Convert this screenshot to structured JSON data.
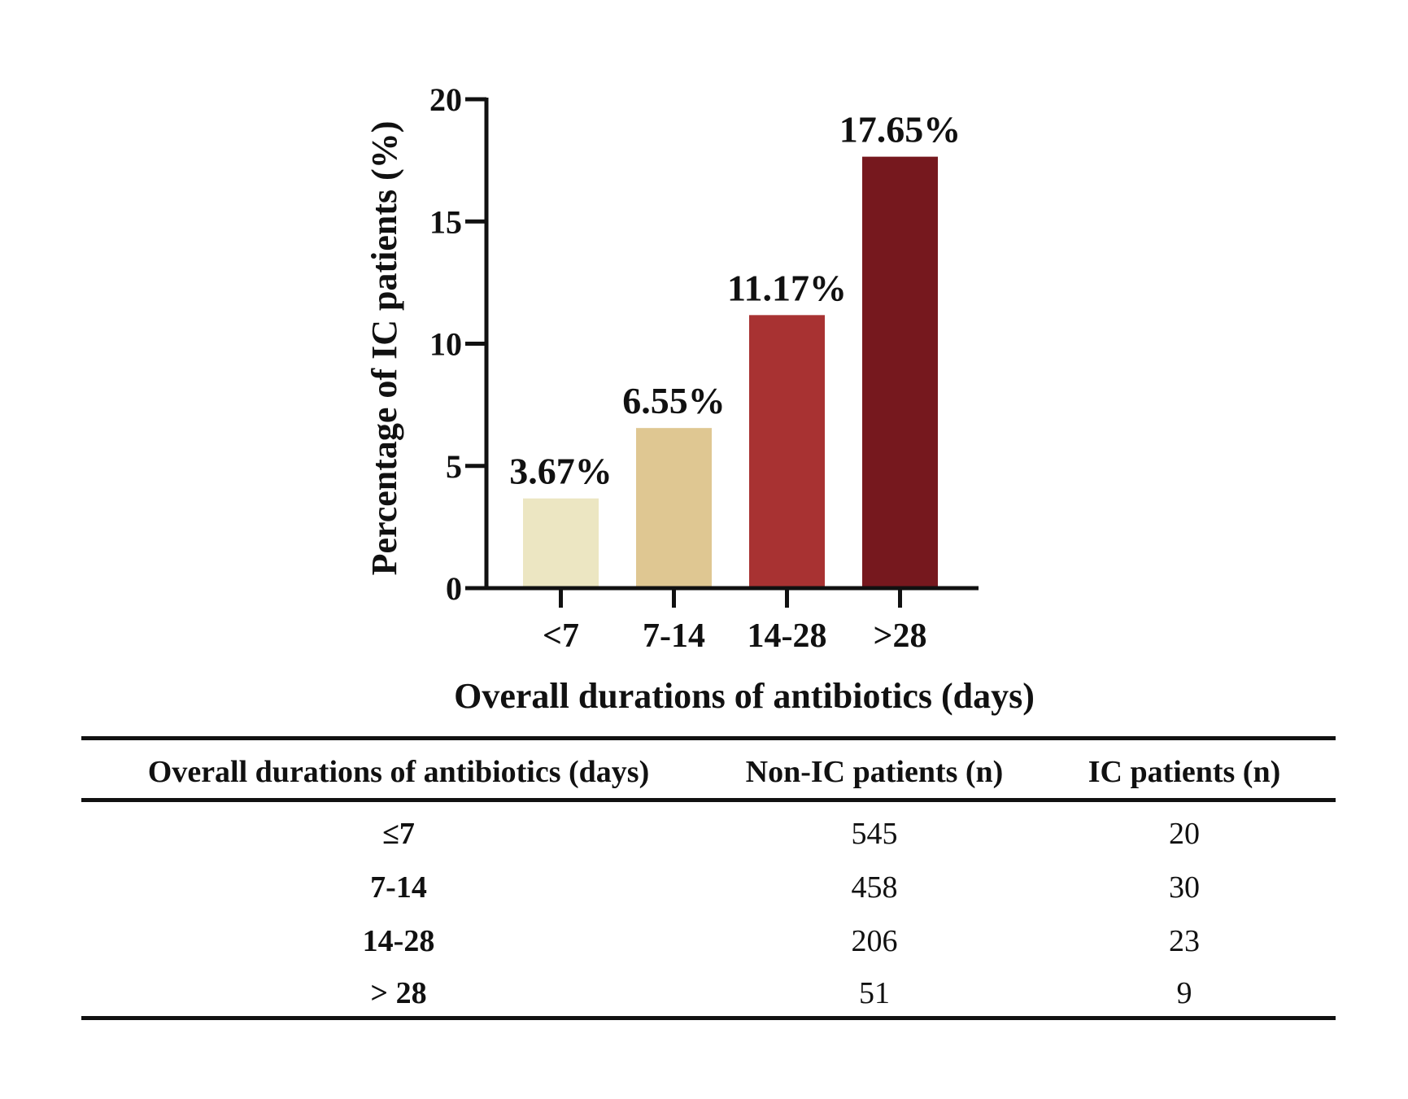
{
  "chart_data": {
    "type": "bar",
    "categories": [
      "<7",
      "7-14",
      "14-28",
      ">28"
    ],
    "values": [
      3.67,
      6.55,
      11.17,
      17.65
    ],
    "data_labels": [
      "3.67%",
      "6.55%",
      "11.17%",
      "17.65%"
    ],
    "colors": [
      "#ece6c2",
      "#dfc792",
      "#a83232",
      "#76181e"
    ],
    "title": "",
    "xlabel": "Overall durations of antibiotics (days)",
    "ylabel": "Percentage of IC patients (%)",
    "ylim": [
      0,
      20
    ],
    "yticks": [
      0,
      5,
      10,
      15,
      20
    ],
    "grid": false
  },
  "table": {
    "headers": [
      "Overall durations of antibiotics (days)",
      "Non-IC patients (n)",
      "IC patients (n)"
    ],
    "rows": [
      {
        "duration": "≤7",
        "non_ic": "545",
        "ic": "20"
      },
      {
        "duration": "7-14",
        "non_ic": "458",
        "ic": "30"
      },
      {
        "duration": "14-28",
        "non_ic": "206",
        "ic": "23"
      },
      {
        "duration": "> 28",
        "non_ic": "51",
        "ic": "9"
      }
    ]
  }
}
